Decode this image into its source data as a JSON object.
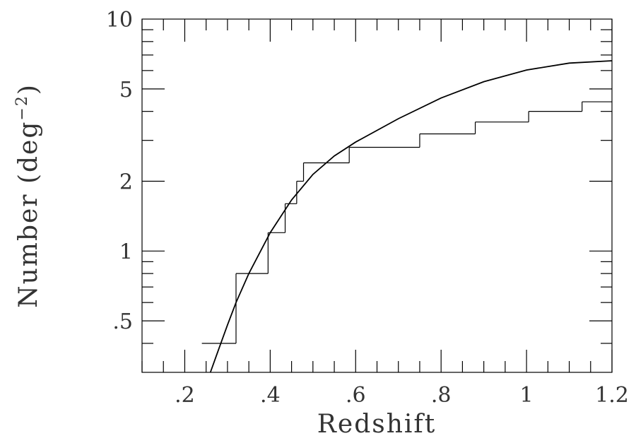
{
  "chart_data": {
    "type": "line",
    "xlabel": "Redshift",
    "ylabel": "Number (deg",
    "ylabel_superscript": "−2",
    "ylabel_close": ")",
    "xlim": [
      0.1,
      1.2
    ],
    "ylim": [
      0.3,
      10
    ],
    "yscale": "log",
    "grid": false,
    "x_ticks": [
      {
        "value": 0.2,
        "label": ".2"
      },
      {
        "value": 0.4,
        "label": ".4"
      },
      {
        "value": 0.6,
        "label": ".6"
      },
      {
        "value": 0.8,
        "label": ".8"
      },
      {
        "value": 1.0,
        "label": "1"
      },
      {
        "value": 1.2,
        "label": "1.2"
      }
    ],
    "y_ticks": [
      {
        "value": 0.5,
        "label": ".5"
      },
      {
        "value": 1,
        "label": "1"
      },
      {
        "value": 2,
        "label": "2"
      },
      {
        "value": 5,
        "label": "5"
      },
      {
        "value": 10,
        "label": "10"
      }
    ],
    "series": [
      {
        "kind": "curve",
        "x": [
          0.26,
          0.28,
          0.3,
          0.32,
          0.35,
          0.4,
          0.45,
          0.5,
          0.55,
          0.6,
          0.7,
          0.8,
          0.9,
          1.0,
          1.1,
          1.2
        ],
        "values": [
          0.3,
          0.38,
          0.48,
          0.6,
          0.8,
          1.2,
          1.66,
          2.14,
          2.57,
          2.95,
          3.72,
          4.57,
          5.37,
          6.03,
          6.46,
          6.61
        ]
      },
      {
        "kind": "step",
        "edges": [
          0.24,
          0.32,
          0.395,
          0.435,
          0.462,
          0.478,
          0.585,
          0.75,
          0.88,
          1.005,
          1.13,
          1.2
        ],
        "values": [
          0.4,
          0.8,
          1.2,
          1.6,
          2.0,
          2.4,
          2.8,
          3.2,
          3.6,
          4.0,
          4.4
        ]
      }
    ]
  }
}
